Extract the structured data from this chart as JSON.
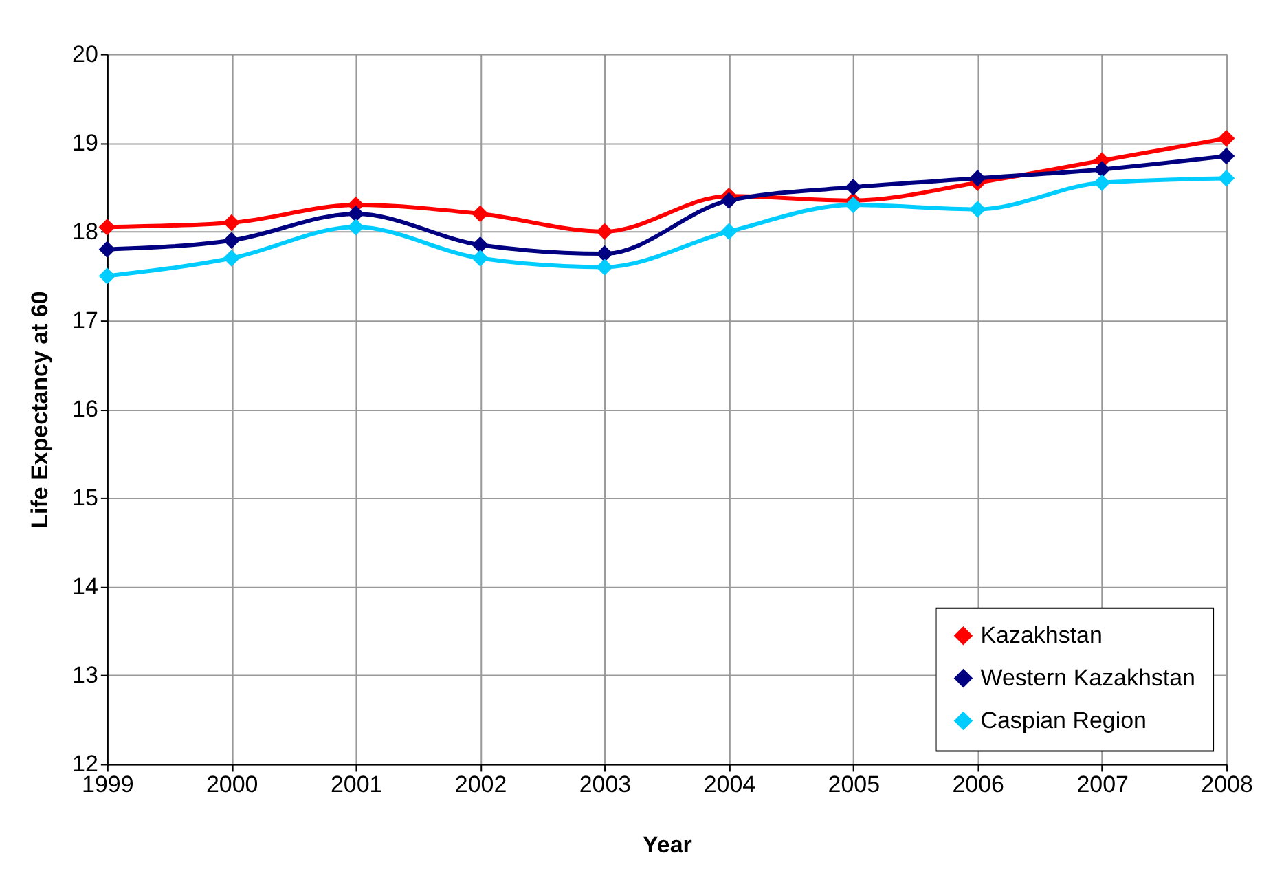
{
  "chart_data": {
    "type": "line",
    "xlabel": "Year",
    "ylabel": "Life Expectancy at 60",
    "x": [
      1999,
      2000,
      2001,
      2002,
      2003,
      2004,
      2005,
      2006,
      2007,
      2008
    ],
    "series": [
      {
        "name": "Kazakhstan",
        "color": "#ff0000",
        "values": [
          18.05,
          18.1,
          18.3,
          18.2,
          18.0,
          18.4,
          18.35,
          18.55,
          18.8,
          19.05
        ]
      },
      {
        "name": "Western Kazakhstan",
        "color": "#000080",
        "values": [
          17.8,
          17.9,
          18.2,
          17.85,
          17.75,
          18.35,
          18.5,
          18.6,
          18.7,
          18.85
        ]
      },
      {
        "name": "Caspian Region",
        "color": "#00ccff",
        "values": [
          17.5,
          17.7,
          18.05,
          17.7,
          17.6,
          18.0,
          18.3,
          18.25,
          18.55,
          18.6
        ]
      }
    ],
    "xlim": [
      1999,
      2008
    ],
    "xticks": [
      1999,
      2000,
      2001,
      2002,
      2003,
      2004,
      2005,
      2006,
      2007,
      2008
    ],
    "ylim": [
      12,
      20
    ],
    "yticks": [
      12,
      13,
      14,
      15,
      16,
      17,
      18,
      19,
      20
    ],
    "grid": true,
    "legend": "bottom right",
    "marker": "diamond",
    "line_style": "solid"
  }
}
